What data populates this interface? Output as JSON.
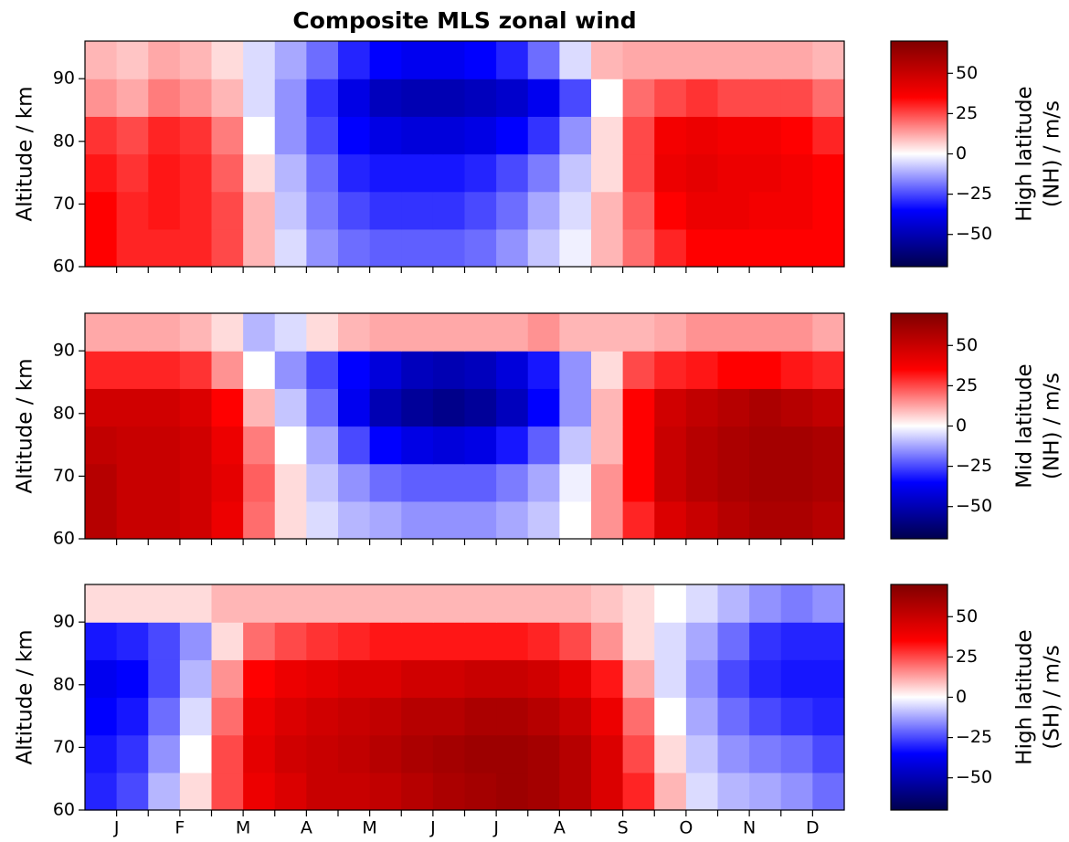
{
  "chart_data": [
    {
      "type": "heatmap",
      "title": "Composite MLS zonal wind",
      "ylabel": "Altitude / km",
      "colorbar_label": [
        "High latitude",
        "(NH) / m/s"
      ],
      "colormap": "seismic",
      "xlim": [
        0,
        12
      ],
      "ylim": [
        60,
        96
      ],
      "clim": [
        -70,
        70
      ],
      "yticks": [
        60,
        70,
        80,
        90
      ],
      "xminor": [
        0.5,
        1,
        1.5,
        2,
        2.5,
        3,
        3.5,
        4,
        4.5,
        5,
        5.5,
        6,
        6.5,
        7,
        7.5,
        8,
        8.5,
        9,
        9.5,
        10,
        10.5,
        11,
        11.5
      ],
      "cticks": [
        {
          "value": -50,
          "label": "−50"
        },
        {
          "value": -25,
          "label": "−25"
        },
        0,
        25,
        50
      ],
      "x_edges": [
        0,
        0.5,
        1,
        1.5,
        2,
        2.5,
        3,
        3.5,
        4,
        4.5,
        5,
        5.5,
        6,
        6.5,
        7,
        7.5,
        8,
        8.5,
        9,
        9.5,
        10,
        10.5,
        11,
        11.5,
        12
      ],
      "y_edges": [
        60,
        66,
        72,
        78,
        84,
        90,
        96
      ],
      "z": [
        [
          35,
          30,
          30,
          30,
          25,
          10,
          -5,
          -15,
          -20,
          -22,
          -22,
          -22,
          -20,
          -15,
          -8,
          -2,
          10,
          20,
          30,
          35,
          35,
          35,
          35,
          35
        ],
        [
          35,
          30,
          32,
          30,
          25,
          10,
          -8,
          -18,
          -25,
          -28,
          -28,
          -28,
          -25,
          -20,
          -12,
          -5,
          10,
          22,
          35,
          40,
          40,
          38,
          38,
          35
        ],
        [
          32,
          28,
          32,
          30,
          22,
          5,
          -10,
          -20,
          -30,
          -32,
          -32,
          -32,
          -30,
          -25,
          -18,
          -8,
          5,
          25,
          40,
          42,
          40,
          40,
          38,
          35
        ],
        [
          28,
          25,
          30,
          28,
          18,
          0,
          -15,
          -25,
          -35,
          -40,
          -42,
          -42,
          -40,
          -35,
          -28,
          -15,
          5,
          25,
          38,
          40,
          38,
          38,
          35,
          30
        ],
        [
          15,
          12,
          18,
          15,
          10,
          -5,
          -15,
          -28,
          -40,
          -48,
          -50,
          -50,
          -48,
          -45,
          -38,
          -25,
          0,
          20,
          25,
          28,
          25,
          25,
          25,
          20
        ],
        [
          10,
          8,
          12,
          10,
          5,
          -5,
          -12,
          -20,
          -30,
          -35,
          -38,
          -38,
          -35,
          -30,
          -20,
          -5,
          10,
          12,
          12,
          12,
          12,
          12,
          12,
          10
        ]
      ]
    },
    {
      "type": "heatmap",
      "ylabel": "Altitude / km",
      "colorbar_label": [
        "Mid latitude",
        "(NH) / m/s"
      ],
      "colormap": "seismic",
      "xlim": [
        0,
        12
      ],
      "ylim": [
        60,
        96
      ],
      "clim": [
        -70,
        70
      ],
      "yticks": [
        60,
        70,
        80,
        90
      ],
      "xminor": [
        0.5,
        1,
        1.5,
        2,
        2.5,
        3,
        3.5,
        4,
        4.5,
        5,
        5.5,
        6,
        6.5,
        7,
        7.5,
        8,
        8.5,
        9,
        9.5,
        10,
        10.5,
        11,
        11.5
      ],
      "cticks": [
        {
          "value": -50,
          "label": "−50"
        },
        {
          "value": -25,
          "label": "−25"
        },
        0,
        25,
        50
      ],
      "x_edges": [
        0,
        0.5,
        1,
        1.5,
        2,
        2.5,
        3,
        3.5,
        4,
        4.5,
        5,
        5.5,
        6,
        6.5,
        7,
        7.5,
        8,
        8.5,
        9,
        9.5,
        10,
        10.5,
        11,
        11.5,
        12
      ],
      "y_edges": [
        60,
        66,
        72,
        78,
        84,
        90,
        96
      ],
      "z": [
        [
          55,
          50,
          50,
          48,
          40,
          20,
          5,
          -5,
          -10,
          -12,
          -15,
          -15,
          -15,
          -12,
          -8,
          0,
          15,
          30,
          45,
          50,
          55,
          58,
          58,
          55
        ],
        [
          55,
          50,
          50,
          48,
          42,
          22,
          5,
          -8,
          -15,
          -20,
          -22,
          -22,
          -22,
          -18,
          -12,
          -2,
          15,
          35,
          50,
          55,
          58,
          60,
          60,
          58
        ],
        [
          52,
          50,
          50,
          48,
          40,
          18,
          0,
          -12,
          -25,
          -35,
          -40,
          -42,
          -40,
          -32,
          -22,
          -8,
          10,
          35,
          50,
          55,
          58,
          60,
          60,
          58
        ],
        [
          48,
          48,
          48,
          45,
          35,
          10,
          -8,
          -20,
          -38,
          -50,
          -55,
          -58,
          -55,
          -48,
          -35,
          -15,
          10,
          35,
          48,
          52,
          55,
          58,
          55,
          52
        ],
        [
          30,
          30,
          30,
          28,
          15,
          0,
          -15,
          -25,
          -35,
          -42,
          -48,
          -50,
          -48,
          -42,
          -32,
          -15,
          5,
          25,
          30,
          32,
          35,
          35,
          32,
          30
        ],
        [
          12,
          12,
          12,
          10,
          5,
          -10,
          -5,
          5,
          10,
          12,
          12,
          12,
          12,
          12,
          15,
          10,
          10,
          10,
          12,
          15,
          15,
          15,
          15,
          12
        ]
      ]
    },
    {
      "type": "heatmap",
      "ylabel": "Altitude / km",
      "colorbar_label": [
        "High latitude",
        "(SH) / m/s"
      ],
      "colormap": "seismic",
      "xlim": [
        0,
        12
      ],
      "ylim": [
        60,
        96
      ],
      "clim": [
        -70,
        70
      ],
      "yticks": [
        60,
        70,
        80,
        90
      ],
      "xticks": [
        {
          "value": 0.5,
          "label": "J"
        },
        {
          "value": 1.5,
          "label": "F"
        },
        {
          "value": 2.5,
          "label": "M"
        },
        {
          "value": 3.5,
          "label": "A"
        },
        {
          "value": 4.5,
          "label": "M"
        },
        {
          "value": 5.5,
          "label": "J"
        },
        {
          "value": 6.5,
          "label": "J"
        },
        {
          "value": 7.5,
          "label": "A"
        },
        {
          "value": 8.5,
          "label": "S"
        },
        {
          "value": 9.5,
          "label": "O"
        },
        {
          "value": 10.5,
          "label": "N"
        },
        {
          "value": 11.5,
          "label": "D"
        }
      ],
      "xminor": [
        1,
        2,
        3,
        4,
        5,
        6,
        7,
        8,
        9,
        10,
        11
      ],
      "cticks": [
        {
          "value": -50,
          "label": "−50"
        },
        {
          "value": -25,
          "label": "−25"
        },
        0,
        25,
        50
      ],
      "x_edges": [
        0,
        0.5,
        1,
        1.5,
        2,
        2.5,
        3,
        3.5,
        4,
        4.5,
        5,
        5.5,
        6,
        6.5,
        7,
        7.5,
        8,
        8.5,
        9,
        9.5,
        10,
        10.5,
        11,
        11.5,
        12
      ],
      "y_edges": [
        60,
        66,
        72,
        78,
        84,
        90,
        96
      ],
      "z": [
        [
          -30,
          -25,
          -10,
          5,
          25,
          40,
          45,
          50,
          50,
          52,
          55,
          58,
          60,
          62,
          60,
          55,
          45,
          30,
          10,
          -5,
          -10,
          -12,
          -15,
          -20
        ],
        [
          -32,
          -28,
          -15,
          0,
          25,
          42,
          48,
          50,
          52,
          55,
          58,
          60,
          62,
          62,
          60,
          55,
          45,
          25,
          5,
          -8,
          -15,
          -18,
          -20,
          -25
        ],
        [
          -35,
          -32,
          -20,
          -5,
          20,
          40,
          45,
          48,
          50,
          52,
          55,
          55,
          58,
          58,
          55,
          50,
          40,
          20,
          0,
          -12,
          -20,
          -25,
          -28,
          -30
        ],
        [
          -38,
          -35,
          -25,
          -10,
          15,
          35,
          40,
          42,
          45,
          45,
          48,
          48,
          50,
          50,
          48,
          42,
          32,
          12,
          -5,
          -15,
          -25,
          -30,
          -32,
          -32
        ],
        [
          -32,
          -30,
          -25,
          -15,
          5,
          20,
          25,
          28,
          30,
          32,
          32,
          32,
          32,
          32,
          30,
          25,
          15,
          5,
          -5,
          -12,
          -20,
          -28,
          -30,
          -30
        ],
        [
          5,
          5,
          5,
          5,
          10,
          10,
          10,
          10,
          10,
          10,
          10,
          10,
          10,
          10,
          10,
          10,
          8,
          5,
          0,
          -5,
          -10,
          -15,
          -18,
          -15
        ]
      ]
    }
  ]
}
